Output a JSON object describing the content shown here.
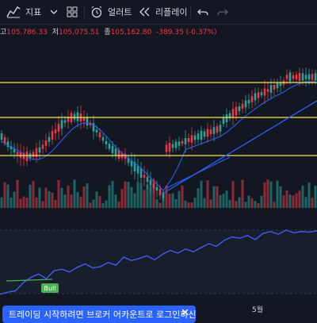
{
  "toolbar": {
    "indicators_label": "지표",
    "alerts_label": "얼러트",
    "replay_label": "리플레이"
  },
  "ohlc": {
    "high_label": "고",
    "high": "105,786.33",
    "low_label": "저",
    "low": "105,075.51",
    "close_label": "종",
    "close": "105,162.80",
    "change": "-389.35 (-0.37%)"
  },
  "time_axis": {
    "month_label": "5월"
  },
  "bull_label": "Bull",
  "banner": {
    "text": "트레이딩 시작하려면 브로커 어카운트로 로그인하신"
  },
  "colors": {
    "up": "#26a69a",
    "down": "#f23645",
    "level_line": "#f7e35a",
    "trend_line": "#2962ff",
    "ma_line": "#2962ff",
    "oscillator": "#3d5cf5",
    "bull": "#4caf50"
  },
  "chart_data": {
    "type": "candlestick",
    "ohlc_series": [],
    "horizontal_levels": 3,
    "oscillator_values": [
      5,
      8,
      10,
      22,
      30,
      35,
      28,
      40,
      42,
      38,
      45,
      50,
      44,
      46,
      52,
      48,
      60,
      55,
      58,
      62,
      56,
      64,
      70,
      66,
      72,
      68,
      74,
      80,
      76,
      85,
      90,
      88,
      92,
      86,
      95,
      98,
      94,
      100,
      96,
      98,
      97,
      99
    ]
  }
}
